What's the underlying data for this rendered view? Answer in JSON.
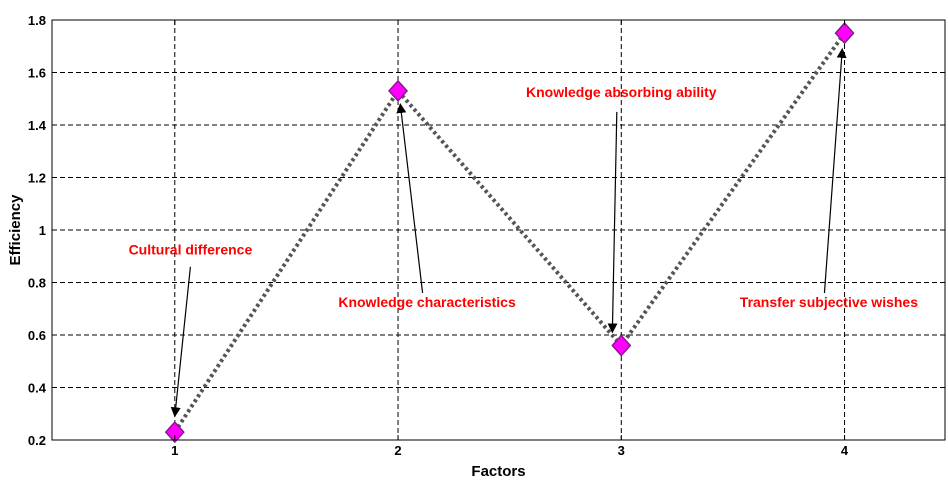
{
  "colors": {
    "annotation": "#ff0000",
    "marker_fill": "#ff00ff",
    "marker_edge": "#8b1a8b",
    "line": "#555555",
    "grid": "#000000"
  },
  "chart_data": {
    "type": "line",
    "title": "",
    "xlabel": "Factors",
    "ylabel": "Efficiency",
    "xlim": [
      0.45,
      4.45
    ],
    "ylim": [
      0.2,
      1.8
    ],
    "xticks": [
      1,
      2,
      3,
      4
    ],
    "xtick_labels": [
      "1",
      "2",
      "3",
      "4"
    ],
    "yticks": [
      0.2,
      0.4,
      0.6,
      0.8,
      1.0,
      1.2,
      1.4,
      1.6,
      1.8
    ],
    "ytick_labels": [
      "0.2",
      "0.4",
      "0.6",
      "0.8",
      "1",
      "1.2",
      "1.4",
      "1.6",
      "1.8"
    ],
    "grid": true,
    "series": [
      {
        "x": [
          1,
          2,
          3,
          4
        ],
        "values": [
          0.23,
          1.53,
          0.56,
          1.75
        ],
        "line_style": "dotted",
        "marker": "diamond"
      }
    ],
    "annotations": [
      {
        "text": "Cultural difference",
        "point_index": 0,
        "text_x": 1.07,
        "text_y": 0.906,
        "anchor": "middle"
      },
      {
        "text": "Knowledge characteristics",
        "point_index": 1,
        "text_x": 2.13,
        "text_y": 0.706,
        "anchor": "middle"
      },
      {
        "text": "Knowledge absorbing ability",
        "point_index": 2,
        "text_x": 3.0,
        "text_y": 1.506,
        "anchor": "middle"
      },
      {
        "text": "Transfer subjective wishes",
        "point_index": 3,
        "text_x": 3.93,
        "text_y": 0.706,
        "anchor": "middle"
      }
    ],
    "arrows": [
      {
        "from": [
          1.07,
          0.86
        ],
        "to": [
          1.0,
          0.29
        ]
      },
      {
        "from": [
          2.11,
          0.76
        ],
        "to": [
          2.01,
          1.48
        ]
      },
      {
        "from": [
          2.98,
          1.45
        ],
        "to": [
          2.96,
          0.61
        ]
      },
      {
        "from": [
          3.91,
          0.76
        ],
        "to": [
          3.99,
          1.69
        ]
      }
    ]
  }
}
